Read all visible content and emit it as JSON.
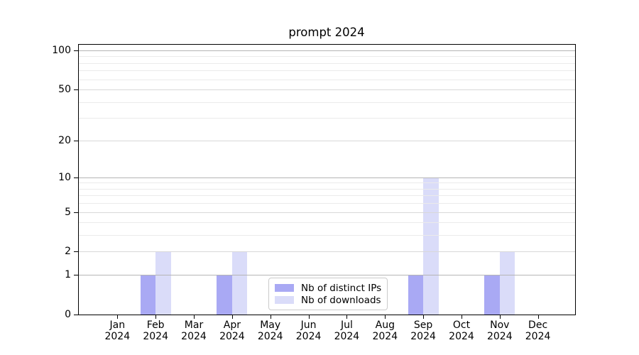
{
  "title": "prompt 2024",
  "chart_data": {
    "type": "bar",
    "title": "prompt 2024",
    "categories": [
      "Jan 2024",
      "Feb 2024",
      "Mar 2024",
      "Apr 2024",
      "May 2024",
      "Jun 2024",
      "Jul 2024",
      "Aug 2024",
      "Sep 2024",
      "Oct 2024",
      "Nov 2024",
      "Dec 2024"
    ],
    "x_axis": {
      "months": [
        "Jan",
        "Feb",
        "Mar",
        "Apr",
        "May",
        "Jun",
        "Jul",
        "Aug",
        "Sep",
        "Oct",
        "Nov",
        "Dec"
      ],
      "year_line": "2024"
    },
    "series": [
      {
        "name": "Nb of distinct IPs",
        "color": "#a9a9f4",
        "values": [
          0,
          1,
          0,
          1,
          0,
          0,
          0,
          0,
          1,
          0,
          1,
          0
        ]
      },
      {
        "name": "Nb of downloads",
        "color": "#dadcf9",
        "values": [
          0,
          2,
          0,
          2,
          0,
          0,
          0,
          0,
          10,
          0,
          2,
          0
        ]
      }
    ],
    "y_axis": {
      "scale": "log1p",
      "ticks": [
        0,
        1,
        2,
        5,
        10,
        20,
        50,
        100
      ],
      "major_grid_ticks": [
        1,
        10,
        100
      ],
      "mid_grid_ticks": [
        2,
        5,
        20,
        50
      ],
      "minor_ticks": [
        3,
        4,
        6,
        7,
        8,
        9,
        30,
        40,
        60,
        70,
        80,
        90
      ],
      "ylim": [
        0,
        110
      ]
    },
    "grid": "on",
    "legend_position": "inside lower center"
  },
  "legend": {
    "title_note": ""
  },
  "colors": {
    "distinct_ips": "#a9a9f4",
    "downloads": "#dadcf9",
    "grid_major": "#b5b5b5",
    "grid_mid": "#d8d8d8",
    "grid_minor": "#ebebeb",
    "spine": "#000000"
  }
}
